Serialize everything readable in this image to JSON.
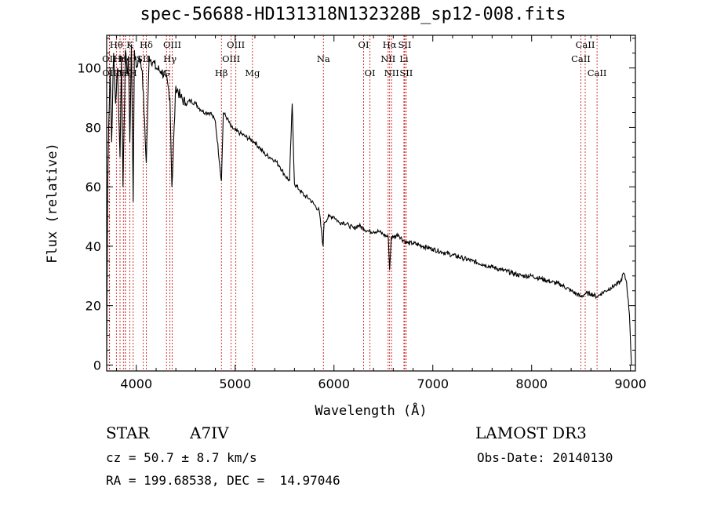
{
  "chart_data": {
    "type": "line",
    "title": "spec-56688-HD131318N132328B_sp12-008.fits",
    "xlabel": "Wavelength (Å)",
    "ylabel": "Flux (relative)",
    "xlim": [
      3700,
      9050
    ],
    "ylim": [
      -2,
      111
    ],
    "xticks": [
      4000,
      5000,
      6000,
      7000,
      8000,
      9000
    ],
    "yticks": [
      0,
      20,
      40,
      60,
      80,
      100
    ],
    "grid": false,
    "series": [
      {
        "name": "spectrum",
        "x": [
          3700,
          3710,
          3720,
          3735,
          3750,
          3770,
          3790,
          3810,
          3835,
          3850,
          3865,
          3889,
          3905,
          3920,
          3934,
          3950,
          3968,
          3980,
          4000,
          4030,
          4060,
          4101,
          4130,
          4170,
          4200,
          4250,
          4300,
          4340,
          4360,
          4400,
          4450,
          4500,
          4550,
          4600,
          4650,
          4700,
          4750,
          4800,
          4861,
          4880,
          4920,
          4960,
          5000,
          5050,
          5100,
          5150,
          5200,
          5250,
          5300,
          5350,
          5400,
          5450,
          5500,
          5550,
          5577,
          5600,
          5650,
          5700,
          5750,
          5800,
          5850,
          5890,
          5900,
          5950,
          6000,
          6050,
          6100,
          6150,
          6200,
          6250,
          6300,
          6350,
          6400,
          6450,
          6500,
          6550,
          6563,
          6580,
          6600,
          6650,
          6700,
          6750,
          6800,
          6900,
          7000,
          7100,
          7200,
          7300,
          7400,
          7500,
          7600,
          7700,
          7800,
          7900,
          8000,
          8100,
          8200,
          8300,
          8400,
          8498,
          8542,
          8600,
          8662,
          8700,
          8750,
          8800,
          8850,
          8900,
          8930,
          8960,
          8990,
          9010
        ],
        "y": [
          2,
          60,
          80,
          100,
          75,
          105,
          88,
          100,
          70,
          104,
          60,
          106,
          98,
          104,
          75,
          108,
          55,
          106,
          100,
          104,
          99,
          68,
          104,
          102,
          100,
          99,
          97,
          90,
          60,
          94,
          90,
          88,
          89,
          88,
          86,
          85,
          85,
          82,
          62,
          85,
          83,
          80,
          79,
          78,
          77,
          76,
          75,
          73,
          71,
          70,
          69,
          67,
          64,
          62,
          88,
          61,
          59,
          57,
          56,
          54,
          52,
          40,
          48,
          50,
          50,
          48,
          48,
          47,
          46,
          47,
          46,
          45,
          45,
          45,
          44,
          43,
          32,
          43,
          43,
          44,
          42,
          41,
          41,
          40,
          39,
          38,
          37,
          36,
          35,
          34,
          33,
          32,
          31,
          30,
          30,
          29,
          28,
          27,
          25,
          23,
          24,
          24,
          23,
          24,
          25,
          26,
          27,
          28,
          31,
          28,
          17,
          0
        ]
      }
    ],
    "line_markers": [
      {
        "label": "OII",
        "x": 3727,
        "row": 1
      },
      {
        "label": "OII",
        "x": 3729,
        "row": 2
      },
      {
        "label": "Hθ",
        "x": 3798,
        "row": 0
      },
      {
        "label": "Hη",
        "x": 3835,
        "row": 1
      },
      {
        "label": "Ne",
        "x": 3869,
        "row": 2
      },
      {
        "label": "He",
        "x": 3889,
        "row": 1
      },
      {
        "label": "Hζ",
        "x": 3889,
        "row": 2
      },
      {
        "label": "K",
        "x": 3934,
        "row": 0
      },
      {
        "label": "H",
        "x": 3968,
        "row": 2
      },
      {
        "label": "Hδ",
        "x": 4101,
        "row": 0
      },
      {
        "label": "SII",
        "x": 4070,
        "row": 1
      },
      {
        "label": "G",
        "x": 4305,
        "row": 2
      },
      {
        "label": "OIII",
        "x": 4363,
        "row": 0
      },
      {
        "label": "Hγ",
        "x": 4340,
        "row": 1
      },
      {
        "label": "Hβ",
        "x": 4861,
        "row": 2
      },
      {
        "label": "OIII",
        "x": 4959,
        "row": 1
      },
      {
        "label": "OIII",
        "x": 5007,
        "row": 0
      },
      {
        "label": "Mg",
        "x": 5175,
        "row": 2
      },
      {
        "label": "Na",
        "x": 5893,
        "row": 1
      },
      {
        "label": "OI",
        "x": 6300,
        "row": 0
      },
      {
        "label": "OI",
        "x": 6364,
        "row": 2
      },
      {
        "label": "Hα",
        "x": 6563,
        "row": 0
      },
      {
        "label": "NII",
        "x": 6548,
        "row": 1
      },
      {
        "label": "NII",
        "x": 6583,
        "row": 2
      },
      {
        "label": "SII",
        "x": 6716,
        "row": 0
      },
      {
        "label": "Li",
        "x": 6708,
        "row": 1
      },
      {
        "label": "SII",
        "x": 6731,
        "row": 2
      },
      {
        "label": "CaII",
        "x": 8542,
        "row": 0
      },
      {
        "label": "CaII",
        "x": 8498,
        "row": 1
      },
      {
        "label": "CaII",
        "x": 8662,
        "row": 2
      }
    ]
  },
  "info": {
    "object_class": "STAR",
    "object_subclass": "A7IV",
    "survey": "LAMOST DR3",
    "cz": "cz = 50.7 ± 8.7 km/s",
    "obs_date": "Obs-Date: 20140130",
    "radec": "RA = 199.68538, DEC =  14.97046"
  },
  "colors": {
    "spectrum": "#000000",
    "marker_line": "#cc2222",
    "axes": "#000000"
  }
}
